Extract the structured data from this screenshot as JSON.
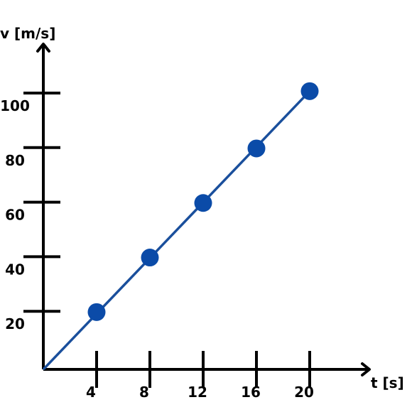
{
  "chart_data": {
    "type": "line",
    "title": "",
    "xlabel": "t [s]",
    "ylabel": "v [m/s]",
    "x_ticks": [
      "4",
      "8",
      "12",
      "16",
      "20"
    ],
    "y_ticks": [
      "20",
      "40",
      "60",
      "80",
      "100"
    ],
    "xlim": [
      0,
      24
    ],
    "ylim": [
      0,
      110
    ],
    "grid": false,
    "line": {
      "x": [
        0,
        20
      ],
      "y": [
        0,
        102
      ]
    },
    "points": [
      {
        "x": 4,
        "y": 21
      },
      {
        "x": 8,
        "y": 41
      },
      {
        "x": 12,
        "y": 61
      },
      {
        "x": 16,
        "y": 81
      },
      {
        "x": 20,
        "y": 102
      }
    ],
    "colors": {
      "axis": "#000000",
      "line": "#1a4f9c",
      "marker": "#0b4ba8"
    }
  }
}
